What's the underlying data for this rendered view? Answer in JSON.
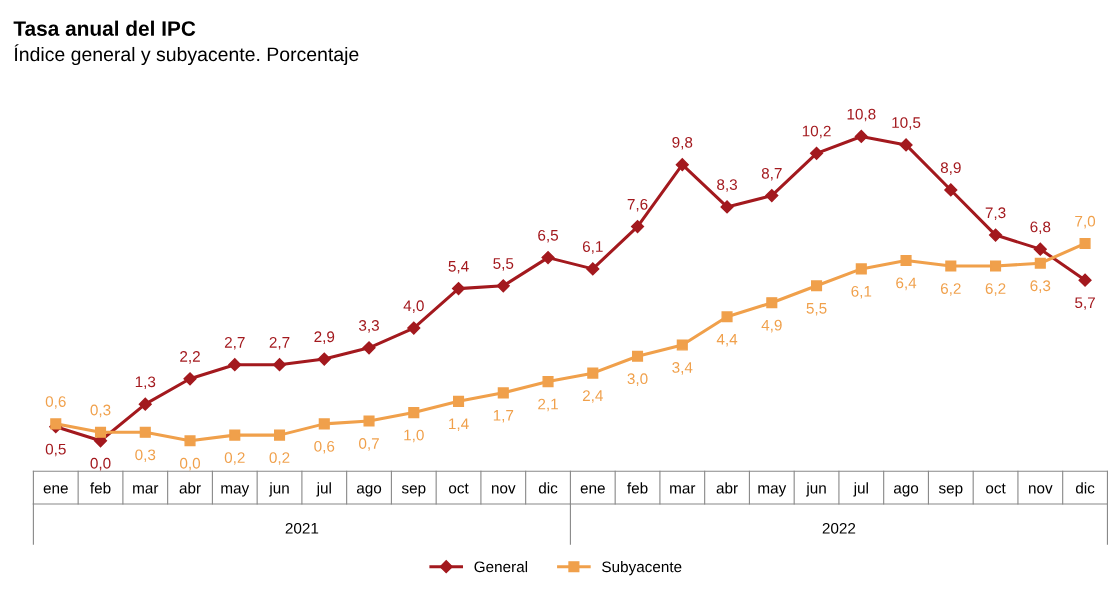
{
  "chart_data": {
    "type": "line",
    "title": "Tasa anual del IPC",
    "subtitle": "Índice general y subyacente. Porcentaje",
    "categories": [
      "ene",
      "feb",
      "mar",
      "abr",
      "may",
      "jun",
      "jul",
      "ago",
      "sep",
      "oct",
      "nov",
      "dic",
      "ene",
      "feb",
      "mar",
      "abr",
      "may",
      "jun",
      "jul",
      "ago",
      "sep",
      "oct",
      "nov",
      "dic"
    ],
    "annotations": [
      "2021",
      "2022"
    ],
    "series": [
      {
        "name": "General",
        "color": "#a3191e",
        "marker": "diamond",
        "values": [
          0.5,
          0.0,
          1.3,
          2.2,
          2.7,
          2.7,
          2.9,
          3.3,
          4.0,
          5.4,
          5.5,
          6.5,
          6.1,
          7.6,
          9.8,
          8.3,
          8.7,
          10.2,
          10.8,
          10.5,
          8.9,
          7.3,
          6.8,
          5.7
        ],
        "value_labels": [
          "0,5",
          "0,0",
          "1,3",
          "2,2",
          "2,7",
          "2,7",
          "2,9",
          "3,3",
          "4,0",
          "5,4",
          "5,5",
          "6,5",
          "6,1",
          "7,6",
          "9,8",
          "8,3",
          "8,7",
          "10,2",
          "10,8",
          "10,5",
          "8,9",
          "7,3",
          "6,8",
          "5,7"
        ]
      },
      {
        "name": "Subyacente",
        "color": "#f0a04b",
        "marker": "square",
        "values": [
          0.6,
          0.3,
          0.3,
          0.0,
          0.2,
          0.2,
          0.6,
          0.7,
          1.0,
          1.4,
          1.7,
          2.1,
          2.4,
          3.0,
          3.4,
          4.4,
          4.9,
          5.5,
          6.1,
          6.4,
          6.2,
          6.2,
          6.3,
          7.0
        ],
        "value_labels": [
          "0,6",
          "0,3",
          "0,3",
          "0,0",
          "0,2",
          "0,2",
          "0,6",
          "0,7",
          "1,0",
          "1,4",
          "1,7",
          "2,1",
          "2,4",
          "3,0",
          "3,4",
          "4,4",
          "4,9",
          "5,5",
          "6,1",
          "6,4",
          "6,2",
          "6,2",
          "6,3",
          "7,0"
        ]
      }
    ],
    "legend": "bottom",
    "grid": false
  }
}
